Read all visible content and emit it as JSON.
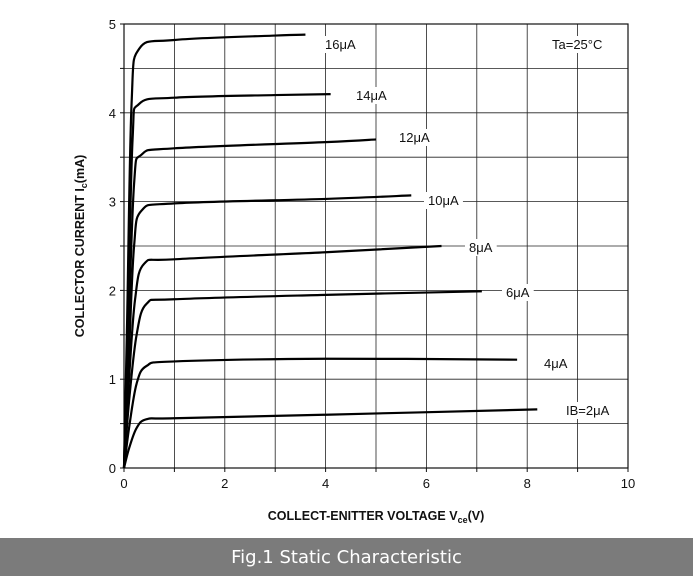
{
  "chart_data": {
    "type": "line",
    "xlim": [
      0,
      10
    ],
    "ylim": [
      0,
      5
    ],
    "x_ticks": [
      "0",
      "2",
      "4",
      "6",
      "8",
      "10"
    ],
    "y_ticks": [
      "0",
      "1",
      "2",
      "3",
      "4",
      "5"
    ],
    "grid": true,
    "ylabel": {
      "main": "COLLECTOR CURRENT  I",
      "sub": "c",
      "unit": "(mA)"
    },
    "xlabel": {
      "main": "COLLECT-ENITTER VOLTAGE  V",
      "sub": "ce",
      "unit": "(V)"
    },
    "annotation": "Ta=25°C",
    "series": [
      {
        "name": "IB=2μA",
        "knee": 0.5,
        "points": [
          [
            0,
            0
          ],
          [
            0.1,
            0.22
          ],
          [
            0.25,
            0.45
          ],
          [
            0.45,
            0.55
          ],
          [
            1,
            0.56
          ],
          [
            4,
            0.6
          ],
          [
            8.2,
            0.66
          ]
        ]
      },
      {
        "name": "4μA",
        "knee": 0.45,
        "points": [
          [
            0,
            0
          ],
          [
            0.1,
            0.45
          ],
          [
            0.25,
            0.95
          ],
          [
            0.45,
            1.15
          ],
          [
            1,
            1.2
          ],
          [
            4,
            1.23
          ],
          [
            7.8,
            1.22
          ]
        ]
      },
      {
        "name": "6μA",
        "knee": 0.45,
        "points": [
          [
            0,
            0
          ],
          [
            0.1,
            0.75
          ],
          [
            0.25,
            1.5
          ],
          [
            0.45,
            1.85
          ],
          [
            1,
            1.9
          ],
          [
            4,
            1.95
          ],
          [
            7.1,
            1.99
          ]
        ]
      },
      {
        "name": "8μA",
        "knee": 0.4,
        "points": [
          [
            0,
            0
          ],
          [
            0.1,
            1.0
          ],
          [
            0.22,
            1.9
          ],
          [
            0.4,
            2.3
          ],
          [
            1,
            2.35
          ],
          [
            4,
            2.43
          ],
          [
            6.3,
            2.5
          ]
        ]
      },
      {
        "name": "10μA",
        "knee": 0.35,
        "points": [
          [
            0,
            0
          ],
          [
            0.1,
            1.3
          ],
          [
            0.2,
            2.5
          ],
          [
            0.35,
            2.9
          ],
          [
            1,
            2.98
          ],
          [
            4,
            3.03
          ],
          [
            5.7,
            3.07
          ]
        ]
      },
      {
        "name": "12μA",
        "knee": 0.35,
        "points": [
          [
            0,
            0
          ],
          [
            0.08,
            1.4
          ],
          [
            0.2,
            3.2
          ],
          [
            0.35,
            3.53
          ],
          [
            1,
            3.6
          ],
          [
            4,
            3.67
          ],
          [
            5.0,
            3.7
          ]
        ]
      },
      {
        "name": "14μA",
        "knee": 0.3,
        "points": [
          [
            0,
            0
          ],
          [
            0.07,
            1.5
          ],
          [
            0.17,
            3.7
          ],
          [
            0.3,
            4.1
          ],
          [
            1,
            4.17
          ],
          [
            3,
            4.2
          ],
          [
            4.1,
            4.21
          ]
        ]
      },
      {
        "name": "16μA",
        "knee": 0.3,
        "points": [
          [
            0,
            0
          ],
          [
            0.06,
            1.6
          ],
          [
            0.15,
            4.1
          ],
          [
            0.3,
            4.72
          ],
          [
            1,
            4.82
          ],
          [
            3,
            4.87
          ],
          [
            3.6,
            4.88
          ]
        ]
      }
    ]
  },
  "caption": "Fig.1 Static Characteristic"
}
